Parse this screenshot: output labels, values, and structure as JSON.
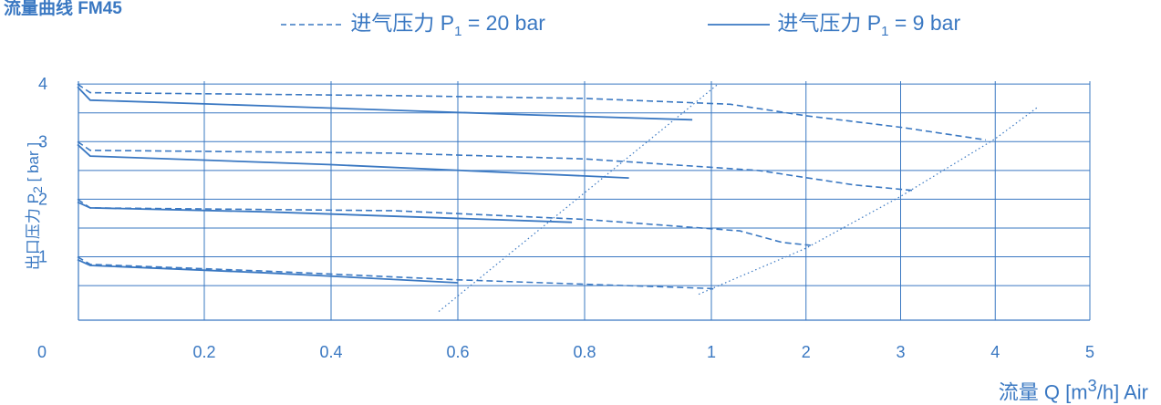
{
  "chart_data": {
    "type": "line",
    "title": "流量曲线 FM45",
    "xlabel_prefix": "流量 Q [m",
    "xlabel_sup": "3",
    "xlabel_suffix": "/h] Air",
    "ylabel_prefix": "出口压力 P",
    "ylabel_sub": "2",
    "ylabel_suffix": " [ bar ]",
    "origin_label": "0",
    "x_ticks": [
      "0.2",
      "0.4",
      "0.6",
      "0.8",
      "1",
      "2",
      "3",
      "4",
      "5"
    ],
    "y_ticks": [
      "1",
      "2",
      "3",
      "4"
    ],
    "x_scale": "piecewise: linear 0–1 in steps of 0.2, then linear 1–5 in steps of 1",
    "ylim": [
      -0.1,
      4.05
    ],
    "grid": true,
    "legend_position": "top",
    "legend": [
      {
        "text_prefix": "进气压力 P",
        "text_sub": "1",
        "text_suffix": " = 20 bar",
        "style": "dashed"
      },
      {
        "text_prefix": "进气压力 P",
        "text_sub": "1",
        "text_suffix": " = 9 bar",
        "style": "solid"
      }
    ],
    "color": "#3a78c2",
    "series": [
      {
        "style": "dashed",
        "points": [
          [
            0,
            4.0
          ],
          [
            0.02,
            3.85
          ],
          [
            0.5,
            3.8
          ],
          [
            0.8,
            3.75
          ],
          [
            1.2,
            3.65
          ],
          [
            2.0,
            3.45
          ],
          [
            3.0,
            3.25
          ],
          [
            3.9,
            3.03
          ]
        ]
      },
      {
        "style": "solid",
        "points": [
          [
            0,
            3.95
          ],
          [
            0.02,
            3.72
          ],
          [
            0.3,
            3.62
          ],
          [
            0.7,
            3.47
          ],
          [
            0.97,
            3.38
          ]
        ]
      },
      {
        "style": "dashed",
        "points": [
          [
            0,
            3.0
          ],
          [
            0.02,
            2.85
          ],
          [
            0.5,
            2.8
          ],
          [
            0.8,
            2.7
          ],
          [
            1.5,
            2.5
          ],
          [
            2.5,
            2.25
          ],
          [
            3.15,
            2.15
          ]
        ]
      },
      {
        "style": "solid",
        "points": [
          [
            0,
            2.95
          ],
          [
            0.02,
            2.75
          ],
          [
            0.4,
            2.6
          ],
          [
            0.87,
            2.37
          ]
        ]
      },
      {
        "style": "dashed",
        "points": [
          [
            0,
            2.0
          ],
          [
            0.02,
            1.85
          ],
          [
            0.5,
            1.8
          ],
          [
            0.8,
            1.65
          ],
          [
            1.3,
            1.45
          ],
          [
            1.75,
            1.25
          ],
          [
            2.05,
            1.2
          ]
        ]
      },
      {
        "style": "solid",
        "points": [
          [
            0,
            1.95
          ],
          [
            0.02,
            1.85
          ],
          [
            0.3,
            1.78
          ],
          [
            0.78,
            1.6
          ]
        ]
      },
      {
        "style": "dashed",
        "points": [
          [
            0,
            1.0
          ],
          [
            0.02,
            0.87
          ],
          [
            0.3,
            0.75
          ],
          [
            0.6,
            0.6
          ],
          [
            1.0,
            0.45
          ],
          [
            1.05,
            0.43
          ]
        ]
      },
      {
        "style": "solid",
        "points": [
          [
            0,
            0.95
          ],
          [
            0.02,
            0.85
          ],
          [
            0.3,
            0.72
          ],
          [
            0.6,
            0.55
          ]
        ]
      },
      {
        "style": "dotted",
        "points": [
          [
            0.57,
            0.05
          ],
          [
            1.07,
            4.0
          ]
        ]
      },
      {
        "style": "dotted",
        "points": [
          [
            0.98,
            0.35
          ],
          [
            2.0,
            1.15
          ],
          [
            3.0,
            2.05
          ],
          [
            4.0,
            3.05
          ],
          [
            4.45,
            3.6
          ]
        ]
      }
    ]
  }
}
